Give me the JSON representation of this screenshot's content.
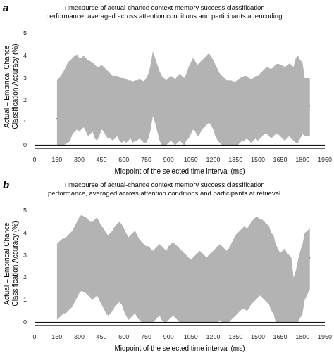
{
  "chart_data": [
    {
      "type": "line",
      "title": "Timecourse of actual-chance context memory success classification\nperformance, averaged across attention conditions and participants at encoding",
      "panel_label": "a",
      "xlabel": "Midpoint of the selected time interval (ms)",
      "ylabel": "Actual – Empirical Chance\nClassification Accuracy (%)",
      "x": [
        150,
        165,
        180,
        195,
        210,
        225,
        240,
        255,
        270,
        285,
        300,
        315,
        330,
        345,
        360,
        375,
        390,
        405,
        420,
        435,
        450,
        465,
        480,
        495,
        510,
        525,
        540,
        555,
        570,
        585,
        600,
        615,
        630,
        645,
        660,
        675,
        690,
        705,
        720,
        735,
        750,
        765,
        780,
        795,
        810,
        825,
        840,
        855,
        870,
        885,
        900,
        915,
        930,
        945,
        960,
        975,
        990,
        1005,
        1020,
        1035,
        1050,
        1065,
        1080,
        1095,
        1110,
        1125,
        1140,
        1155,
        1170,
        1185,
        1200,
        1215,
        1230,
        1245,
        1260,
        1275,
        1290,
        1305,
        1320,
        1335,
        1350,
        1365,
        1380,
        1395,
        1410,
        1425,
        1440,
        1455,
        1470,
        1485,
        1500,
        1515,
        1530,
        1545,
        1560,
        1575,
        1590,
        1605,
        1620,
        1635,
        1650,
        1665,
        1680,
        1695,
        1710,
        1725,
        1740,
        1755,
        1770,
        1785,
        1800,
        1815,
        1850
      ],
      "series": [
        {
          "type": "band",
          "color": "#b3b3b3",
          "lower": [
            0.0,
            0.0,
            0.0,
            0.0,
            0.05,
            0.1,
            0.2,
            0.5,
            0.6,
            0.7,
            0.6,
            0.7,
            0.8,
            0.6,
            0.4,
            0.5,
            0.6,
            0.3,
            0.2,
            0.4,
            0.7,
            0.6,
            0.4,
            0.3,
            0.3,
            0.2,
            0.3,
            0.4,
            0.2,
            0.1,
            0.2,
            0.1,
            0.2,
            0.3,
            0.1,
            0.2,
            0.2,
            0.3,
            0.2,
            0.1,
            0.1,
            0.3,
            0.7,
            1.3,
            1.0,
            0.6,
            0.2,
            0.0,
            0.0,
            0.0,
            0.1,
            0.2,
            0.1,
            0.0,
            0.1,
            0.2,
            0.1,
            0.0,
            0.2,
            0.3,
            0.5,
            0.7,
            0.6,
            0.4,
            0.5,
            0.7,
            0.8,
            0.9,
            1.0,
            0.9,
            0.7,
            0.4,
            0.2,
            0.1,
            0.0,
            0.0,
            0.0,
            0.0,
            0.0,
            0.0,
            0.0,
            0.0,
            0.1,
            0.2,
            0.2,
            0.3,
            0.2,
            0.1,
            0.2,
            0.3,
            0.2,
            0.3,
            0.4,
            0.5,
            0.5,
            0.4,
            0.3,
            0.4,
            0.5,
            0.5,
            0.4,
            0.3,
            0.2,
            0.3,
            0.4,
            0.3,
            0.2,
            0.1,
            0.1,
            0.3,
            0.5,
            0.4,
            0.4
          ],
          "upper": [
            2.9,
            3.0,
            3.15,
            3.3,
            3.5,
            3.7,
            3.8,
            3.9,
            4.0,
            4.05,
            3.9,
            3.9,
            4.0,
            3.9,
            3.8,
            3.75,
            3.7,
            3.6,
            3.5,
            3.5,
            3.6,
            3.5,
            3.4,
            3.3,
            3.2,
            3.1,
            3.1,
            3.1,
            3.05,
            3.0,
            3.0,
            2.95,
            2.9,
            2.9,
            2.85,
            2.9,
            2.9,
            2.95,
            2.9,
            2.85,
            3.0,
            3.2,
            3.6,
            4.2,
            3.9,
            3.6,
            3.3,
            3.1,
            3.0,
            2.9,
            3.0,
            3.1,
            3.05,
            2.95,
            3.1,
            3.2,
            3.1,
            3.0,
            3.2,
            3.5,
            3.7,
            3.9,
            3.75,
            3.6,
            3.7,
            3.8,
            3.9,
            4.0,
            4.1,
            4.0,
            3.8,
            3.6,
            3.4,
            3.2,
            3.1,
            3.0,
            2.9,
            2.9,
            2.9,
            2.85,
            2.85,
            2.9,
            3.0,
            3.05,
            3.1,
            3.1,
            3.0,
            2.95,
            3.0,
            3.1,
            3.1,
            3.2,
            3.3,
            3.4,
            3.5,
            3.45,
            3.4,
            3.5,
            3.6,
            3.65,
            3.6,
            3.55,
            3.5,
            3.55,
            3.65,
            3.6,
            3.5,
            3.9,
            4.0,
            3.8,
            3.7,
            3.0,
            3.0
          ]
        },
        {
          "type": "line",
          "color": "#000000",
          "values": [
            1.2,
            1.1,
            1.3,
            1.6,
            1.8,
            1.9,
            2.1,
            2.3,
            2.4,
            2.5,
            2.35,
            2.4,
            2.5,
            2.3,
            2.1,
            2.2,
            2.25,
            2.0,
            1.9,
            2.1,
            2.3,
            2.2,
            2.0,
            1.9,
            1.85,
            1.8,
            1.85,
            1.9,
            1.8,
            1.7,
            1.75,
            1.65,
            1.7,
            1.75,
            1.6,
            1.65,
            1.7,
            1.75,
            1.65,
            1.6,
            1.7,
            1.85,
            2.3,
            2.9,
            2.6,
            2.2,
            1.8,
            1.65,
            1.6,
            1.55,
            1.65,
            1.75,
            1.7,
            1.6,
            1.75,
            1.8,
            1.7,
            1.65,
            1.8,
            2.0,
            2.2,
            2.4,
            2.3,
            2.1,
            2.2,
            2.4,
            2.5,
            2.6,
            2.7,
            2.6,
            2.35,
            2.1,
            1.9,
            1.75,
            1.65,
            1.6,
            1.5,
            1.55,
            1.6,
            1.5,
            1.5,
            1.55,
            1.65,
            1.7,
            1.75,
            1.8,
            1.75,
            1.7,
            1.75,
            1.8,
            1.75,
            1.85,
            1.95,
            2.05,
            2.1,
            2.0,
            1.95,
            2.0,
            2.1,
            2.15,
            2.05,
            2.0,
            1.95,
            2.0,
            2.1,
            2.05,
            1.85,
            1.8,
            1.75,
            1.7,
            1.8,
            1.75,
            1.75
          ]
        }
      ],
      "hline": 0,
      "xlim": [
        0,
        1950
      ],
      "xticks": [
        0,
        150,
        300,
        450,
        600,
        750,
        900,
        1050,
        1200,
        1350,
        1500,
        1650,
        1800,
        1950
      ],
      "ylim": [
        -0.15,
        5.4
      ],
      "yticks": [
        0,
        1,
        2,
        3,
        4,
        5
      ],
      "grid": false
    },
    {
      "type": "line",
      "title": "Timecourse of actual-chance context memory success classification\nperformance, averaged across attention conditions and participants at retrieval",
      "panel_label": "b",
      "xlabel": "Midpoint of the selected time interval (ms)",
      "ylabel": "Actual – Empirical Chance\nClassification Accuracy (%)",
      "x": [
        150,
        165,
        180,
        195,
        210,
        225,
        240,
        255,
        270,
        285,
        300,
        315,
        330,
        345,
        360,
        375,
        390,
        405,
        420,
        435,
        450,
        465,
        480,
        495,
        510,
        525,
        540,
        555,
        570,
        585,
        600,
        615,
        630,
        645,
        660,
        675,
        690,
        705,
        720,
        735,
        750,
        765,
        780,
        795,
        810,
        825,
        840,
        855,
        870,
        885,
        900,
        915,
        930,
        945,
        960,
        975,
        990,
        1005,
        1020,
        1035,
        1050,
        1065,
        1080,
        1095,
        1110,
        1125,
        1140,
        1155,
        1170,
        1185,
        1200,
        1215,
        1230,
        1245,
        1260,
        1275,
        1290,
        1305,
        1320,
        1335,
        1350,
        1365,
        1380,
        1395,
        1410,
        1425,
        1440,
        1455,
        1470,
        1485,
        1500,
        1515,
        1530,
        1545,
        1560,
        1575,
        1590,
        1605,
        1620,
        1635,
        1650,
        1665,
        1680,
        1695,
        1710,
        1725,
        1740,
        1755,
        1770,
        1785,
        1800,
        1815,
        1850
      ],
      "series": [
        {
          "type": "band",
          "color": "#b3b3b3",
          "lower": [
            0.1,
            0.2,
            0.3,
            0.4,
            0.4,
            0.5,
            0.6,
            0.7,
            0.9,
            1.1,
            1.3,
            1.4,
            1.35,
            1.3,
            1.2,
            1.1,
            1.0,
            1.1,
            1.2,
            1.0,
            0.8,
            0.6,
            0.4,
            0.3,
            0.4,
            0.5,
            0.7,
            0.8,
            0.9,
            0.8,
            0.5,
            0.3,
            0.1,
            0.2,
            0.3,
            0.4,
            0.2,
            0.1,
            0.0,
            0.0,
            0.0,
            0.0,
            0.0,
            0.0,
            0.1,
            0.2,
            0.3,
            0.1,
            0.0,
            0.0,
            0.1,
            0.2,
            0.3,
            0.2,
            0.1,
            0.0,
            0.0,
            0.0,
            0.0,
            0.0,
            0.0,
            0.0,
            0.0,
            0.0,
            0.0,
            0.0,
            0.0,
            0.0,
            0.0,
            0.0,
            0.0,
            0.0,
            0.0,
            0.1,
            0.0,
            0.0,
            0.0,
            0.0,
            0.1,
            0.2,
            0.3,
            0.4,
            0.5,
            0.6,
            0.6,
            0.5,
            0.6,
            0.8,
            0.9,
            1.0,
            1.1,
            1.2,
            1.1,
            1.0,
            0.9,
            0.8,
            0.5,
            0.4,
            0.0,
            0.0,
            0.0,
            0.0,
            0.0,
            0.0,
            0.0,
            0.0,
            0.0,
            0.0,
            0.0,
            0.2,
            0.4,
            1.0,
            1.5
          ],
          "upper": [
            3.5,
            3.6,
            3.7,
            3.75,
            3.8,
            3.9,
            4.0,
            4.1,
            4.3,
            4.5,
            4.7,
            4.8,
            4.75,
            4.7,
            4.6,
            4.5,
            4.5,
            4.6,
            4.7,
            4.5,
            4.3,
            4.2,
            4.0,
            3.9,
            4.0,
            4.1,
            4.3,
            4.4,
            4.5,
            4.4,
            4.2,
            4.0,
            3.8,
            3.9,
            4.0,
            4.1,
            3.9,
            3.7,
            3.6,
            3.5,
            3.4,
            3.4,
            3.3,
            3.2,
            3.3,
            3.4,
            3.5,
            3.4,
            3.3,
            3.2,
            3.4,
            3.5,
            3.6,
            3.5,
            3.4,
            3.3,
            3.2,
            3.1,
            3.0,
            2.9,
            2.8,
            2.9,
            3.0,
            3.1,
            3.2,
            3.1,
            3.0,
            2.9,
            3.0,
            3.1,
            3.2,
            3.3,
            3.4,
            3.5,
            3.4,
            3.3,
            3.2,
            3.3,
            3.5,
            3.7,
            3.9,
            4.0,
            4.1,
            4.2,
            4.3,
            4.2,
            4.3,
            4.5,
            4.6,
            4.7,
            4.7,
            4.6,
            4.6,
            4.5,
            4.4,
            4.3,
            4.0,
            3.9,
            3.5,
            3.3,
            3.1,
            3.2,
            3.3,
            3.1,
            3.0,
            2.9,
            2.0,
            2.3,
            2.8,
            3.2,
            3.5,
            4.0,
            4.2
          ]
        },
        {
          "type": "line",
          "color": "#000000",
          "values": [
            1.75,
            1.8,
            1.9,
            2.0,
            2.1,
            2.2,
            2.3,
            2.4,
            2.6,
            2.8,
            3.0,
            3.1,
            3.05,
            3.0,
            2.9,
            2.8,
            2.7,
            2.75,
            2.8,
            2.6,
            2.4,
            2.3,
            2.1,
            2.0,
            2.1,
            2.2,
            2.4,
            2.5,
            2.6,
            2.5,
            2.3,
            2.1,
            2.0,
            2.1,
            2.2,
            2.3,
            2.15,
            2.05,
            2.0,
            1.95,
            1.9,
            1.9,
            1.85,
            1.8,
            1.9,
            2.0,
            2.0,
            1.9,
            1.85,
            1.8,
            1.9,
            2.0,
            2.1,
            2.05,
            1.95,
            1.85,
            1.8,
            1.7,
            1.65,
            1.6,
            1.5,
            1.6,
            1.7,
            1.8,
            1.85,
            1.8,
            1.75,
            1.7,
            1.75,
            1.8,
            1.85,
            1.9,
            1.95,
            2.0,
            1.95,
            1.9,
            1.85,
            1.9,
            2.0,
            2.1,
            2.2,
            2.3,
            2.4,
            2.5,
            2.5,
            2.45,
            2.5,
            2.6,
            2.7,
            2.8,
            2.9,
            3.0,
            3.0,
            2.9,
            2.8,
            2.7,
            2.5,
            2.4,
            2.0,
            1.9,
            1.8,
            2.0,
            2.1,
            1.9,
            1.8,
            1.7,
            1.0,
            1.2,
            1.5,
            1.8,
            2.0,
            2.5,
            2.9
          ]
        }
      ],
      "hline": 0,
      "xlim": [
        0,
        1950
      ],
      "xticks": [
        0,
        150,
        300,
        450,
        600,
        750,
        900,
        1050,
        1200,
        1350,
        1500,
        1650,
        1800,
        1950
      ],
      "ylim": [
        -0.15,
        5.4
      ],
      "yticks": [
        0,
        1,
        2,
        3,
        4,
        5
      ],
      "grid": false
    }
  ]
}
